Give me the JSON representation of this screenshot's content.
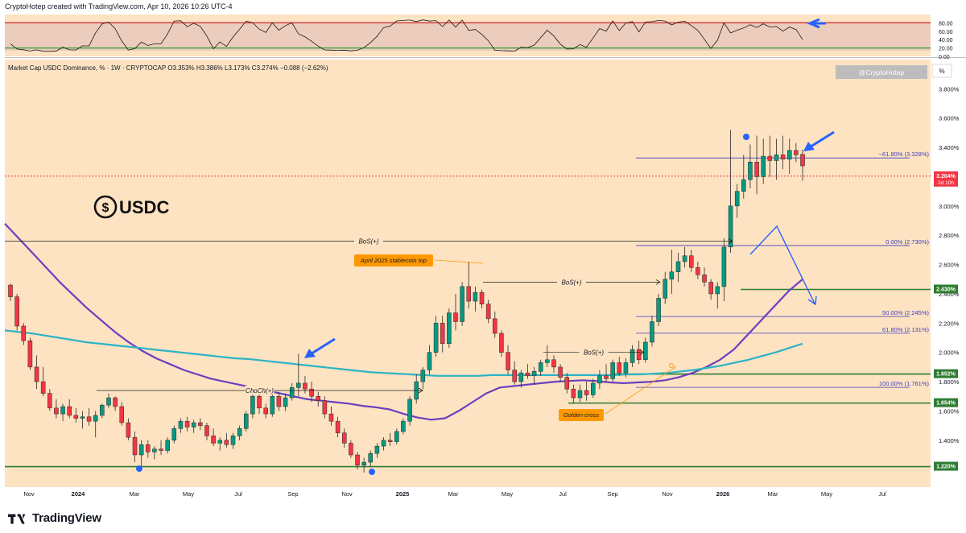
{
  "header": {
    "created_by": "CryptoHotep created with TradingView.com, Apr 10, 2026 10:26 UTC-4",
    "instrument_line": "Market Cap USDC Dominance, % · 1W · CRYPTOCAP  O3.353%  H3.386%  L3.173%  C3.274%  −0.088 (−2.62%)"
  },
  "watermark": {
    "handle": "@CryptoHotep",
    "unit": "%"
  },
  "logo": {
    "symbol": "$",
    "text": "USDC"
  },
  "footer": {
    "brand": "TradingView"
  },
  "oscillator": {
    "levels": [
      "80.00",
      "60.00",
      "40.00",
      "20.00",
      "0.00"
    ],
    "upper_line_value": 80,
    "lower_line_value": 20
  },
  "chart_data": {
    "type": "candlestick",
    "title": "Market Cap USDC Dominance, % · 1W · CRYPTOCAP",
    "ylabel": "%",
    "ylim": [
      1.08,
      4.0
    ],
    "y_ticks": [
      "3.800%",
      "3.600%",
      "3.400%",
      "3.000%",
      "2.800%",
      "2.600%",
      "2.400%",
      "2.200%",
      "2.000%",
      "1.800%",
      "1.600%",
      "1.400%"
    ],
    "x_ticks": [
      "Nov",
      "2024",
      "Mar",
      "May",
      "Jul",
      "Sep",
      "Nov",
      "2025",
      "Mar",
      "May",
      "Jul",
      "Sep",
      "Nov",
      "2026",
      "Mar",
      "May",
      "Jul"
    ],
    "price_tags": [
      {
        "label": "3.204%",
        "sub": "2d 10h",
        "value": 3.204,
        "color": "#f23645"
      },
      {
        "label": "2.430%",
        "value": 2.43,
        "color": "#2e7d32"
      },
      {
        "label": "1.852%",
        "value": 1.852,
        "color": "#2e7d32"
      },
      {
        "label": "1.654%",
        "value": 1.654,
        "color": "#2e7d32"
      },
      {
        "label": "1.220%",
        "value": 1.22,
        "color": "#2e7d32"
      }
    ],
    "fib_levels": [
      {
        "label": "−61.80% (3.328%)",
        "value": 3.328
      },
      {
        "label": "0.00% (2.730%)",
        "value": 2.73
      },
      {
        "label": "50.00% (2.245%)",
        "value": 2.245
      },
      {
        "label": "61.80% (2.131%)",
        "value": 2.131
      },
      {
        "label": "100.00% (1.761%)",
        "value": 1.761
      }
    ],
    "structure_labels": [
      {
        "label": "BoS(+)",
        "value": 2.76
      },
      {
        "label": "BoS(+)",
        "value": 2.48
      },
      {
        "label": "BoS(+)",
        "value": 2.0
      },
      {
        "label": "ChoCh(+)",
        "value": 1.74
      }
    ],
    "annotations": [
      "April 2025 stablecoin top",
      "Golden cross"
    ],
    "candles": [
      {
        "o": 2.46,
        "h": 2.47,
        "l": 2.35,
        "c": 2.38
      },
      {
        "o": 2.38,
        "h": 2.4,
        "l": 2.15,
        "c": 2.18
      },
      {
        "o": 2.18,
        "h": 2.2,
        "l": 2.05,
        "c": 2.08
      },
      {
        "o": 2.08,
        "h": 2.1,
        "l": 1.88,
        "c": 1.9
      },
      {
        "o": 1.9,
        "h": 1.98,
        "l": 1.75,
        "c": 1.8
      },
      {
        "o": 1.8,
        "h": 1.9,
        "l": 1.7,
        "c": 1.72
      },
      {
        "o": 1.72,
        "h": 1.75,
        "l": 1.6,
        "c": 1.62
      },
      {
        "o": 1.62,
        "h": 1.68,
        "l": 1.55,
        "c": 1.58
      },
      {
        "o": 1.58,
        "h": 1.65,
        "l": 1.53,
        "c": 1.63
      },
      {
        "o": 1.63,
        "h": 1.68,
        "l": 1.55,
        "c": 1.57
      },
      {
        "o": 1.57,
        "h": 1.62,
        "l": 1.52,
        "c": 1.55
      },
      {
        "o": 1.55,
        "h": 1.6,
        "l": 1.48,
        "c": 1.56
      },
      {
        "o": 1.56,
        "h": 1.62,
        "l": 1.5,
        "c": 1.53
      },
      {
        "o": 1.53,
        "h": 1.6,
        "l": 1.42,
        "c": 1.57
      },
      {
        "o": 1.57,
        "h": 1.65,
        "l": 1.55,
        "c": 1.64
      },
      {
        "o": 1.64,
        "h": 1.72,
        "l": 1.62,
        "c": 1.69
      },
      {
        "o": 1.69,
        "h": 1.7,
        "l": 1.6,
        "c": 1.63
      },
      {
        "o": 1.63,
        "h": 1.66,
        "l": 1.5,
        "c": 1.52
      },
      {
        "o": 1.52,
        "h": 1.55,
        "l": 1.4,
        "c": 1.42
      },
      {
        "o": 1.42,
        "h": 1.46,
        "l": 1.25,
        "c": 1.3
      },
      {
        "o": 1.3,
        "h": 1.4,
        "l": 1.22,
        "c": 1.37
      },
      {
        "o": 1.37,
        "h": 1.4,
        "l": 1.28,
        "c": 1.32
      },
      {
        "o": 1.32,
        "h": 1.36,
        "l": 1.27,
        "c": 1.34
      },
      {
        "o": 1.34,
        "h": 1.4,
        "l": 1.3,
        "c": 1.33
      },
      {
        "o": 1.33,
        "h": 1.42,
        "l": 1.31,
        "c": 1.4
      },
      {
        "o": 1.4,
        "h": 1.5,
        "l": 1.38,
        "c": 1.48
      },
      {
        "o": 1.48,
        "h": 1.55,
        "l": 1.45,
        "c": 1.53
      },
      {
        "o": 1.53,
        "h": 1.56,
        "l": 1.46,
        "c": 1.49
      },
      {
        "o": 1.49,
        "h": 1.54,
        "l": 1.45,
        "c": 1.52
      },
      {
        "o": 1.52,
        "h": 1.55,
        "l": 1.47,
        "c": 1.5
      },
      {
        "o": 1.5,
        "h": 1.52,
        "l": 1.4,
        "c": 1.43
      },
      {
        "o": 1.43,
        "h": 1.48,
        "l": 1.36,
        "c": 1.38
      },
      {
        "o": 1.38,
        "h": 1.42,
        "l": 1.33,
        "c": 1.4
      },
      {
        "o": 1.4,
        "h": 1.45,
        "l": 1.35,
        "c": 1.37
      },
      {
        "o": 1.37,
        "h": 1.45,
        "l": 1.34,
        "c": 1.43
      },
      {
        "o": 1.43,
        "h": 1.5,
        "l": 1.4,
        "c": 1.48
      },
      {
        "o": 1.48,
        "h": 1.6,
        "l": 1.46,
        "c": 1.58
      },
      {
        "o": 1.58,
        "h": 1.75,
        "l": 1.55,
        "c": 1.7
      },
      {
        "o": 1.7,
        "h": 1.73,
        "l": 1.58,
        "c": 1.62
      },
      {
        "o": 1.62,
        "h": 1.65,
        "l": 1.55,
        "c": 1.58
      },
      {
        "o": 1.58,
        "h": 1.72,
        "l": 1.56,
        "c": 1.7
      },
      {
        "o": 1.7,
        "h": 1.73,
        "l": 1.6,
        "c": 1.63
      },
      {
        "o": 1.63,
        "h": 1.72,
        "l": 1.6,
        "c": 1.69
      },
      {
        "o": 1.69,
        "h": 1.79,
        "l": 1.67,
        "c": 1.76
      },
      {
        "o": 1.76,
        "h": 1.99,
        "l": 1.7,
        "c": 1.79
      },
      {
        "o": 1.79,
        "h": 1.84,
        "l": 1.72,
        "c": 1.75
      },
      {
        "o": 1.75,
        "h": 1.8,
        "l": 1.66,
        "c": 1.7
      },
      {
        "o": 1.7,
        "h": 1.73,
        "l": 1.63,
        "c": 1.67
      },
      {
        "o": 1.67,
        "h": 1.7,
        "l": 1.55,
        "c": 1.58
      },
      {
        "o": 1.58,
        "h": 1.63,
        "l": 1.5,
        "c": 1.53
      },
      {
        "o": 1.53,
        "h": 1.56,
        "l": 1.42,
        "c": 1.45
      },
      {
        "o": 1.45,
        "h": 1.48,
        "l": 1.35,
        "c": 1.38
      },
      {
        "o": 1.38,
        "h": 1.4,
        "l": 1.28,
        "c": 1.3
      },
      {
        "o": 1.3,
        "h": 1.32,
        "l": 1.2,
        "c": 1.23
      },
      {
        "o": 1.23,
        "h": 1.28,
        "l": 1.18,
        "c": 1.25
      },
      {
        "o": 1.25,
        "h": 1.33,
        "l": 1.22,
        "c": 1.31
      },
      {
        "o": 1.31,
        "h": 1.38,
        "l": 1.28,
        "c": 1.36
      },
      {
        "o": 1.36,
        "h": 1.42,
        "l": 1.33,
        "c": 1.4
      },
      {
        "o": 1.4,
        "h": 1.45,
        "l": 1.36,
        "c": 1.39
      },
      {
        "o": 1.39,
        "h": 1.48,
        "l": 1.37,
        "c": 1.46
      },
      {
        "o": 1.46,
        "h": 1.55,
        "l": 1.44,
        "c": 1.53
      },
      {
        "o": 1.53,
        "h": 1.7,
        "l": 1.5,
        "c": 1.68
      },
      {
        "o": 1.68,
        "h": 1.85,
        "l": 1.65,
        "c": 1.8
      },
      {
        "o": 1.8,
        "h": 1.9,
        "l": 1.75,
        "c": 1.88
      },
      {
        "o": 1.88,
        "h": 2.05,
        "l": 1.85,
        "c": 2.0
      },
      {
        "o": 2.0,
        "h": 2.25,
        "l": 1.97,
        "c": 2.2
      },
      {
        "o": 2.2,
        "h": 2.25,
        "l": 2.0,
        "c": 2.06
      },
      {
        "o": 2.06,
        "h": 2.3,
        "l": 2.03,
        "c": 2.27
      },
      {
        "o": 2.27,
        "h": 2.4,
        "l": 2.15,
        "c": 2.21
      },
      {
        "o": 2.21,
        "h": 2.48,
        "l": 2.18,
        "c": 2.45
      },
      {
        "o": 2.45,
        "h": 2.62,
        "l": 2.3,
        "c": 2.35
      },
      {
        "o": 2.35,
        "h": 2.45,
        "l": 2.28,
        "c": 2.41
      },
      {
        "o": 2.41,
        "h": 2.43,
        "l": 2.3,
        "c": 2.33
      },
      {
        "o": 2.33,
        "h": 2.36,
        "l": 2.2,
        "c": 2.23
      },
      {
        "o": 2.23,
        "h": 2.28,
        "l": 2.1,
        "c": 2.13
      },
      {
        "o": 2.13,
        "h": 2.15,
        "l": 1.97,
        "c": 2.0
      },
      {
        "o": 2.0,
        "h": 2.05,
        "l": 1.85,
        "c": 1.88
      },
      {
        "o": 1.88,
        "h": 1.94,
        "l": 1.78,
        "c": 1.8
      },
      {
        "o": 1.8,
        "h": 1.88,
        "l": 1.76,
        "c": 1.86
      },
      {
        "o": 1.86,
        "h": 1.92,
        "l": 1.82,
        "c": 1.84
      },
      {
        "o": 1.84,
        "h": 1.9,
        "l": 1.78,
        "c": 1.87
      },
      {
        "o": 1.87,
        "h": 1.95,
        "l": 1.84,
        "c": 1.93
      },
      {
        "o": 1.93,
        "h": 2.05,
        "l": 1.9,
        "c": 1.95
      },
      {
        "o": 1.95,
        "h": 1.98,
        "l": 1.86,
        "c": 1.9
      },
      {
        "o": 1.9,
        "h": 1.92,
        "l": 1.8,
        "c": 1.83
      },
      {
        "o": 1.83,
        "h": 1.86,
        "l": 1.72,
        "c": 1.75
      },
      {
        "o": 1.75,
        "h": 1.78,
        "l": 1.65,
        "c": 1.69
      },
      {
        "o": 1.69,
        "h": 1.78,
        "l": 1.66,
        "c": 1.74
      },
      {
        "o": 1.74,
        "h": 1.8,
        "l": 1.67,
        "c": 1.71
      },
      {
        "o": 1.71,
        "h": 1.82,
        "l": 1.69,
        "c": 1.79
      },
      {
        "o": 1.79,
        "h": 1.88,
        "l": 1.75,
        "c": 1.84
      },
      {
        "o": 1.84,
        "h": 1.92,
        "l": 1.8,
        "c": 1.82
      },
      {
        "o": 1.82,
        "h": 1.95,
        "l": 1.8,
        "c": 1.93
      },
      {
        "o": 1.93,
        "h": 1.97,
        "l": 1.84,
        "c": 1.86
      },
      {
        "o": 1.86,
        "h": 1.96,
        "l": 1.83,
        "c": 1.93
      },
      {
        "o": 1.93,
        "h": 2.05,
        "l": 1.9,
        "c": 2.02
      },
      {
        "o": 2.02,
        "h": 2.08,
        "l": 1.92,
        "c": 1.95
      },
      {
        "o": 1.95,
        "h": 2.1,
        "l": 1.93,
        "c": 2.07
      },
      {
        "o": 2.07,
        "h": 2.25,
        "l": 2.04,
        "c": 2.21
      },
      {
        "o": 2.21,
        "h": 2.4,
        "l": 2.18,
        "c": 2.37
      },
      {
        "o": 2.37,
        "h": 2.55,
        "l": 2.33,
        "c": 2.5
      },
      {
        "o": 2.5,
        "h": 2.7,
        "l": 2.4,
        "c": 2.55
      },
      {
        "o": 2.55,
        "h": 2.68,
        "l": 2.48,
        "c": 2.62
      },
      {
        "o": 2.62,
        "h": 2.72,
        "l": 2.58,
        "c": 2.66
      },
      {
        "o": 2.66,
        "h": 2.7,
        "l": 2.55,
        "c": 2.58
      },
      {
        "o": 2.58,
        "h": 2.62,
        "l": 2.5,
        "c": 2.53
      },
      {
        "o": 2.53,
        "h": 2.58,
        "l": 2.45,
        "c": 2.48
      },
      {
        "o": 2.48,
        "h": 2.5,
        "l": 2.36,
        "c": 2.4
      },
      {
        "o": 2.4,
        "h": 2.48,
        "l": 2.3,
        "c": 2.45
      },
      {
        "o": 2.45,
        "h": 2.78,
        "l": 2.35,
        "c": 2.72
      },
      {
        "o": 2.72,
        "h": 3.52,
        "l": 2.68,
        "c": 3.0
      },
      {
        "o": 3.0,
        "h": 3.15,
        "l": 2.92,
        "c": 3.1
      },
      {
        "o": 3.1,
        "h": 3.35,
        "l": 3.05,
        "c": 3.18
      },
      {
        "o": 3.18,
        "h": 3.42,
        "l": 3.12,
        "c": 3.3
      },
      {
        "o": 3.3,
        "h": 3.48,
        "l": 3.08,
        "c": 3.2
      },
      {
        "o": 3.2,
        "h": 3.46,
        "l": 3.15,
        "c": 3.34
      },
      {
        "o": 3.34,
        "h": 3.48,
        "l": 3.2,
        "c": 3.31
      },
      {
        "o": 3.31,
        "h": 3.46,
        "l": 3.18,
        "c": 3.35
      },
      {
        "o": 3.35,
        "h": 3.48,
        "l": 3.25,
        "c": 3.32
      },
      {
        "o": 3.32,
        "h": 3.46,
        "l": 3.22,
        "c": 3.38
      },
      {
        "o": 3.38,
        "h": 3.43,
        "l": 3.3,
        "c": 3.35
      },
      {
        "o": 3.353,
        "h": 3.386,
        "l": 3.173,
        "c": 3.274
      }
    ],
    "series": [
      {
        "name": "MA purple (200-week)",
        "color": "#6a3fc0",
        "values": [
          2.88,
          2.78,
          2.68,
          2.58,
          2.48,
          2.39,
          2.3,
          2.22,
          2.14,
          2.07,
          2.01,
          1.96,
          1.92,
          1.88,
          1.85,
          1.82,
          1.8,
          1.78,
          1.76,
          1.74,
          1.72,
          1.7,
          1.68,
          1.67,
          1.66,
          1.65,
          1.635,
          1.625,
          1.61,
          1.58,
          1.555,
          1.54,
          1.55,
          1.6,
          1.66,
          1.72,
          1.76,
          1.77,
          1.78,
          1.79,
          1.8,
          1.805,
          1.81,
          1.805,
          1.795,
          1.79,
          1.795,
          1.8,
          1.81,
          1.83,
          1.86,
          1.9,
          1.95,
          2.02,
          2.12,
          2.22,
          2.32,
          2.42,
          2.5
        ]
      },
      {
        "name": "MA teal",
        "color": "#2bb3c6",
        "values": [
          2.15,
          2.14,
          2.13,
          2.115,
          2.1,
          2.085,
          2.07,
          2.06,
          2.05,
          2.04,
          2.03,
          2.02,
          2.01,
          2.0,
          1.99,
          1.98,
          1.97,
          1.96,
          1.955,
          1.945,
          1.935,
          1.925,
          1.915,
          1.905,
          1.895,
          1.885,
          1.875,
          1.865,
          1.86,
          1.855,
          1.85,
          1.845,
          1.84,
          1.84,
          1.84,
          1.84,
          1.845,
          1.845,
          1.845,
          1.845,
          1.845,
          1.845,
          1.845,
          1.845,
          1.845,
          1.845,
          1.85,
          1.85,
          1.855,
          1.86,
          1.87,
          1.88,
          1.895,
          1.91,
          1.93,
          1.95,
          1.975,
          2.0,
          2.03,
          2.06
        ]
      }
    ]
  }
}
